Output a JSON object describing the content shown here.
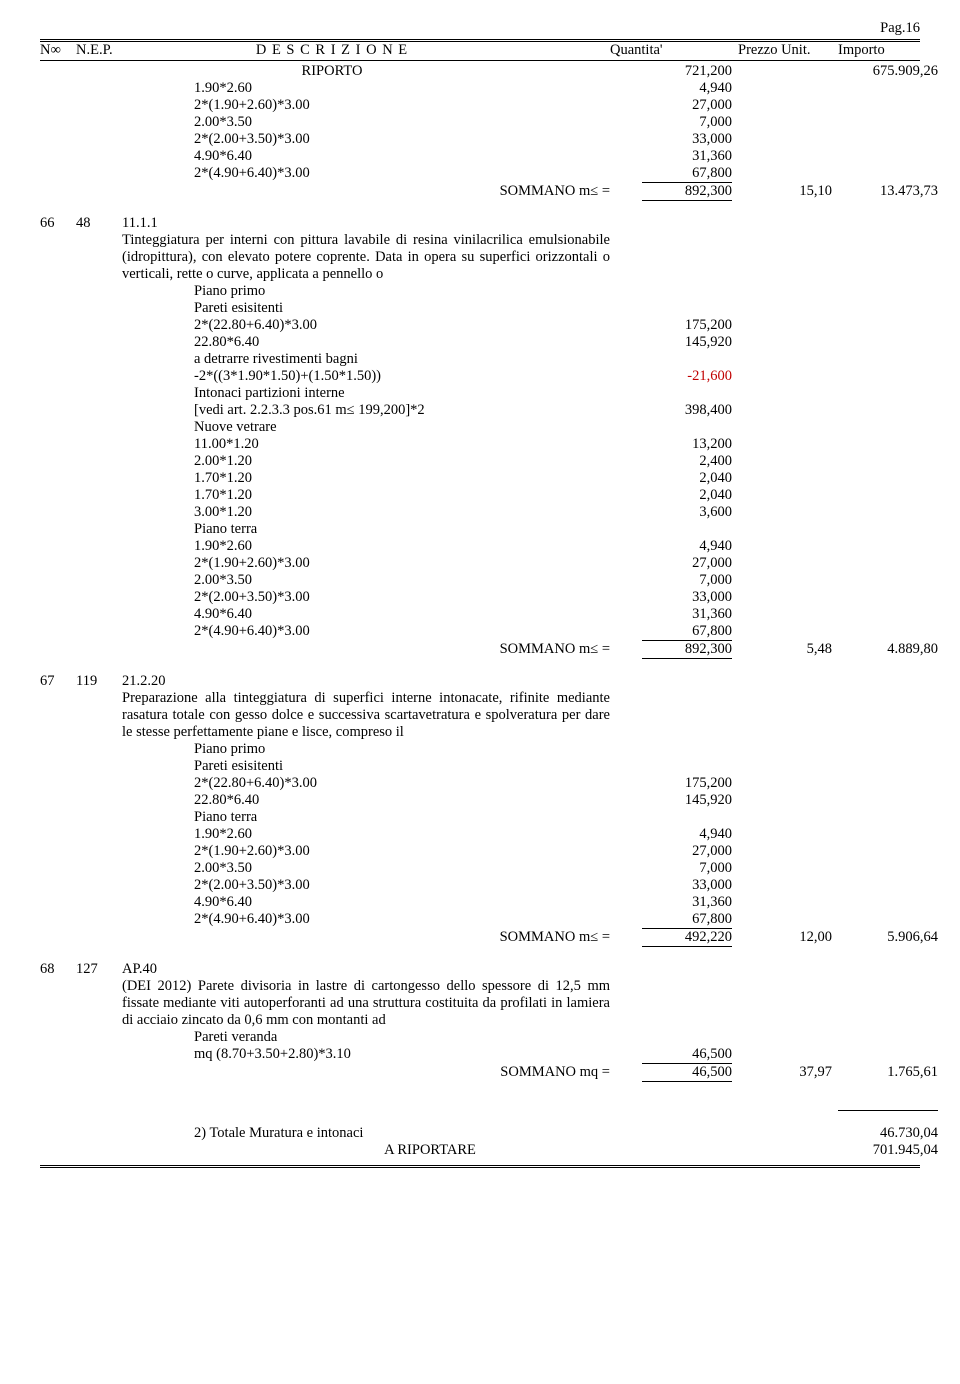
{
  "page_label": "Pag.16",
  "header": {
    "n": "N∞",
    "nep": "N.E.P.",
    "descr": "D E S C R I Z I O N E",
    "quant": "Quantita'",
    "prezzo": "Prezzo Unit.",
    "importo": "Importo"
  },
  "riporto_label": "RIPORTO",
  "riporto_qty": "721,200",
  "riporto_imp": "675.909,26",
  "block1": {
    "lines": [
      {
        "t": "1.90*2.60",
        "q": "4,940"
      },
      {
        "t": "2*(1.90+2.60)*3.00",
        "q": "27,000"
      },
      {
        "t": "2.00*3.50",
        "q": "7,000"
      },
      {
        "t": "2*(2.00+3.50)*3.00",
        "q": "33,000"
      },
      {
        "t": "4.90*6.40",
        "q": "31,360"
      },
      {
        "t": "2*(4.90+6.40)*3.00",
        "q": "67,800",
        "ul": true
      }
    ],
    "sum_label": "SOMMANO   m≤ =",
    "sum_qty": "892,300",
    "sum_prezzo": "15,10",
    "sum_imp": "13.473,73"
  },
  "item66": {
    "n": "66",
    "nep": "48",
    "code": "11.1.1",
    "desc": "Tinteggiatura per interni con pittura lavabile di resina vinilacrilica emulsionabile (idropittura), con elevato potere coprente. Data in opera su superfici orizzontali o verticali, rette o curve, applicata a pennello o",
    "lines": [
      {
        "t": "Piano primo"
      },
      {
        "t": "Pareti esisitenti"
      },
      {
        "t": "2*(22.80+6.40)*3.00",
        "q": "175,200"
      },
      {
        "t": "22.80*6.40",
        "q": "145,920"
      },
      {
        "t": "a detrarre rivestimenti bagni"
      },
      {
        "t": "-2*((3*1.90*1.50)+(1.50*1.50))",
        "q": "-21,600",
        "neg": true
      },
      {
        "t": "Intonaci partizioni interne"
      },
      {
        "t": "[vedi art. 2.2.3.3  pos.61 m≤ 199,200]*2",
        "q": "398,400"
      },
      {
        "t": "Nuove vetrare"
      },
      {
        "t": "11.00*1.20",
        "q": "13,200"
      },
      {
        "t": "2.00*1.20",
        "q": "2,400"
      },
      {
        "t": "1.70*1.20",
        "q": "2,040"
      },
      {
        "t": "1.70*1.20",
        "q": "2,040"
      },
      {
        "t": "3.00*1.20",
        "q": "3,600"
      },
      {
        "t": "Piano terra"
      },
      {
        "t": "1.90*2.60",
        "q": "4,940"
      },
      {
        "t": "2*(1.90+2.60)*3.00",
        "q": "27,000"
      },
      {
        "t": "2.00*3.50",
        "q": "7,000"
      },
      {
        "t": "2*(2.00+3.50)*3.00",
        "q": "33,000"
      },
      {
        "t": "4.90*6.40",
        "q": "31,360"
      },
      {
        "t": "2*(4.90+6.40)*3.00",
        "q": "67,800",
        "ul": true
      }
    ],
    "sum_label": "SOMMANO   m≤ =",
    "sum_qty": "892,300",
    "sum_prezzo": "5,48",
    "sum_imp": "4.889,80"
  },
  "item67": {
    "n": "67",
    "nep": "119",
    "code": "21.2.20",
    "desc": "Preparazione alla tinteggiatura di superfici interne intonacate, rifinite mediante rasatura totale con gesso dolce e successiva scartavetratura e spolveratura per dare le stesse perfettamente piane e lisce, compreso il",
    "lines": [
      {
        "t": "Piano primo"
      },
      {
        "t": "Pareti esisitenti"
      },
      {
        "t": "2*(22.80+6.40)*3.00",
        "q": "175,200"
      },
      {
        "t": "22.80*6.40",
        "q": "145,920"
      },
      {
        "t": "Piano terra"
      },
      {
        "t": "1.90*2.60",
        "q": "4,940"
      },
      {
        "t": "2*(1.90+2.60)*3.00",
        "q": "27,000"
      },
      {
        "t": "2.00*3.50",
        "q": "7,000"
      },
      {
        "t": "2*(2.00+3.50)*3.00",
        "q": "33,000"
      },
      {
        "t": "4.90*6.40",
        "q": "31,360"
      },
      {
        "t": "2*(4.90+6.40)*3.00",
        "q": "67,800",
        "ul": true
      }
    ],
    "sum_label": "SOMMANO   m≤ =",
    "sum_qty": "492,220",
    "sum_prezzo": "12,00",
    "sum_imp": "5.906,64"
  },
  "item68": {
    "n": "68",
    "nep": "127",
    "code": "AP.40",
    "desc": "(DEI 2012) Parete divisoria in lastre di cartongesso dello spessore di 12,5 mm fissate mediante viti autoperforanti ad una struttura costituita da profilati in lamiera di acciaio zincato da 0,6 mm con montanti ad",
    "lines": [
      {
        "t": "Pareti veranda"
      },
      {
        "t": "mq (8.70+3.50+2.80)*3.10",
        "q": "46,500",
        "ul": true
      }
    ],
    "sum_label": "SOMMANO   mq =",
    "sum_qty": "46,500",
    "sum_prezzo": "37,97",
    "sum_imp": "1.765,61"
  },
  "totale_label": "2) Totale  Muratura e intonaci",
  "totale_val": "46.730,04",
  "riportare_label": "A RIPORTARE",
  "riportare_val": "701.945,04"
}
